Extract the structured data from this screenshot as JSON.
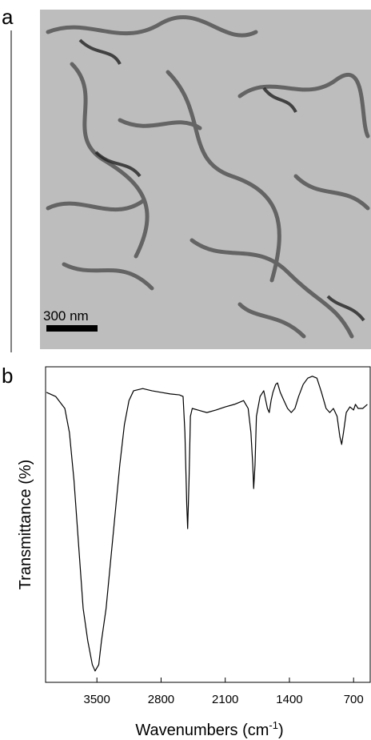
{
  "panel_a": {
    "label": "a",
    "scale_bar": "300 nm"
  },
  "panel_b": {
    "label": "b"
  },
  "chart_data": {
    "type": "line",
    "xlabel": "Wavenumbers (cm",
    "xlabel_sup": "-1",
    "xlabel_end": ")",
    "ylabel": "Transmittance (%)",
    "xlim": [
      4060,
      510
    ],
    "ylim": [
      0,
      100
    ],
    "xticks": [
      3500,
      2800,
      2100,
      1400,
      700
    ],
    "x": [
      4050,
      3950,
      3850,
      3800,
      3750,
      3700,
      3650,
      3600,
      3550,
      3520,
      3480,
      3450,
      3400,
      3350,
      3300,
      3250,
      3200,
      3150,
      3100,
      3000,
      2900,
      2800,
      2700,
      2600,
      2560,
      2540,
      2520,
      2510,
      2495,
      2480,
      2460,
      2400,
      2300,
      2200,
      2100,
      2000,
      1900,
      1850,
      1820,
      1800,
      1790,
      1775,
      1760,
      1720,
      1680,
      1640,
      1620,
      1600,
      1580,
      1550,
      1530,
      1500,
      1460,
      1420,
      1380,
      1340,
      1300,
      1250,
      1200,
      1150,
      1100,
      1050,
      1000,
      960,
      920,
      880,
      850,
      830,
      810,
      780,
      740,
      700,
      680,
      650,
      600,
      550
    ],
    "series": [
      {
        "color": "#000000",
        "values": [
          91.9,
          90.6,
          86.8,
          79.2,
          64.0,
          43.7,
          23.4,
          13.2,
          5.6,
          3.6,
          5.6,
          13.2,
          23.4,
          38.6,
          53.8,
          69.0,
          81.7,
          89.3,
          92.4,
          93.1,
          92.4,
          91.9,
          91.4,
          91.1,
          90.6,
          79.2,
          56.3,
          48.7,
          64.0,
          84.3,
          86.8,
          86.3,
          85.5,
          86.3,
          87.3,
          88.1,
          89.3,
          86.8,
          79.2,
          69.0,
          61.4,
          69.0,
          84.3,
          90.6,
          92.4,
          86.8,
          85.5,
          89.3,
          91.9,
          94.4,
          94.9,
          91.9,
          89.3,
          86.8,
          85.5,
          86.8,
          90.6,
          94.4,
          96.4,
          97.0,
          96.4,
          91.9,
          86.8,
          85.5,
          86.8,
          84.3,
          77.9,
          75.4,
          79.2,
          85.5,
          87.3,
          86.3,
          88.1,
          86.8,
          86.8,
          88.1
        ]
      }
    ]
  }
}
